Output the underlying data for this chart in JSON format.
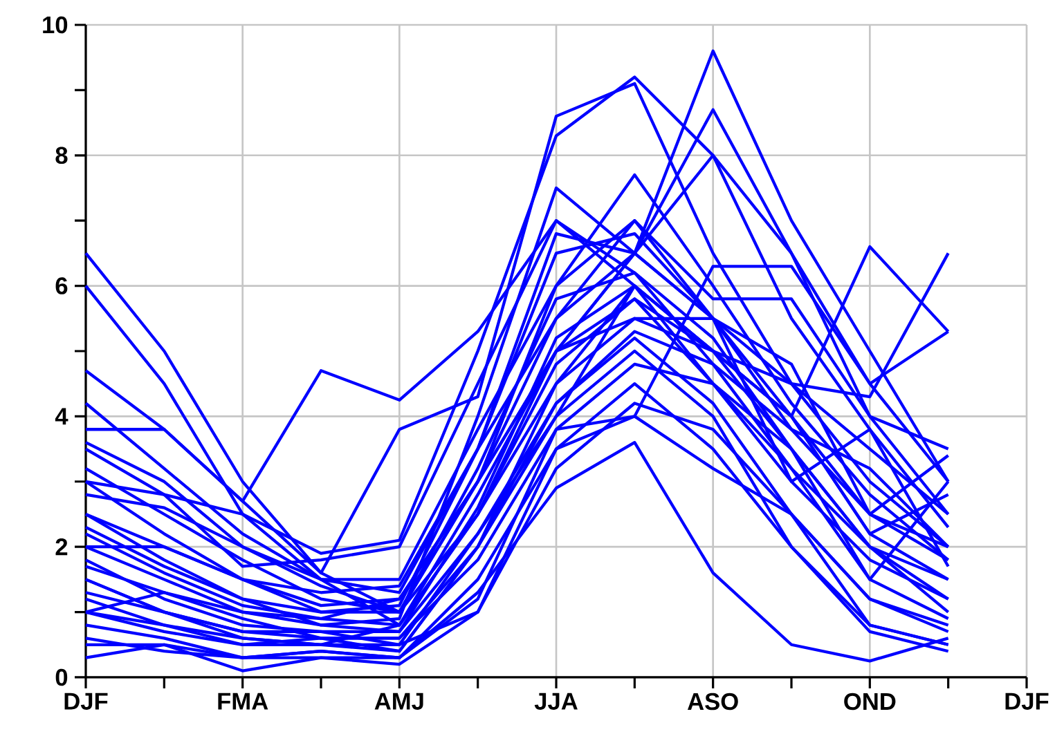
{
  "chart_data": {
    "type": "line",
    "color": "#0000ff",
    "grid": true,
    "categories": [
      "DJF",
      null,
      "FMA",
      null,
      "AMJ",
      null,
      "JJA",
      null,
      "ASO",
      null,
      "OND",
      null,
      "DJF"
    ],
    "ylim": [
      0,
      10
    ],
    "yticks": [
      0,
      {
        "value": 1,
        "label": null
      },
      2,
      {
        "value": 3,
        "label": null
      },
      4,
      {
        "value": 5,
        "label": null
      },
      6,
      {
        "value": 7,
        "label": null
      },
      8,
      {
        "value": 9,
        "label": null
      },
      10
    ],
    "series": [
      {
        "values": [
          6.5,
          5.0,
          3.0,
          1.6,
          1.0,
          3.0,
          6.0,
          7.0,
          5.5,
          4.0,
          2.5,
          1.8,
          null
        ]
      },
      {
        "values": [
          6.0,
          4.5,
          2.5,
          1.5,
          0.8,
          2.5,
          5.0,
          6.5,
          9.6,
          7.0,
          5.0,
          3.0,
          null
        ]
      },
      {
        "values": [
          4.7,
          3.8,
          2.7,
          4.7,
          4.25,
          5.3,
          7.0,
          6.0,
          5.0,
          4.5,
          3.5,
          2.5,
          null
        ]
      },
      {
        "values": [
          3.8,
          3.8,
          2.7,
          1.6,
          3.8,
          4.3,
          8.6,
          9.1,
          6.5,
          4.5,
          3.0,
          2.0,
          null
        ]
      },
      {
        "values": [
          3.5,
          2.8,
          2.5,
          1.9,
          2.1,
          5.0,
          8.3,
          9.2,
          8.0,
          5.5,
          3.8,
          2.3,
          null
        ]
      },
      {
        "values": [
          0.3,
          0.5,
          0.1,
          0.3,
          0.3,
          1.3,
          2.9,
          3.6,
          1.6,
          0.5,
          0.25,
          0.6,
          null
        ]
      },
      {
        "values": [
          1.0,
          1.3,
          1.0,
          0.9,
          1.2,
          3.0,
          5.5,
          6.5,
          8.7,
          6.5,
          4.5,
          3.0,
          null
        ]
      },
      {
        "values": [
          2.0,
          1.5,
          1.0,
          0.8,
          0.9,
          4.0,
          7.5,
          6.5,
          8.0,
          6.5,
          4.0,
          2.5,
          null
        ]
      },
      {
        "values": [
          1.5,
          1.0,
          0.6,
          0.5,
          0.5,
          1.0,
          3.5,
          4.0,
          6.3,
          6.3,
          4.5,
          5.3,
          null
        ]
      },
      {
        "values": [
          2.5,
          1.8,
          1.2,
          1.0,
          1.0,
          2.5,
          4.5,
          6.0,
          5.0,
          4.0,
          6.6,
          5.3,
          null
        ]
      },
      {
        "values": [
          3.0,
          2.2,
          1.5,
          1.1,
          1.2,
          3.0,
          5.0,
          5.5,
          5.5,
          4.5,
          4.3,
          6.5,
          null
        ]
      },
      {
        "values": [
          1.2,
          0.8,
          0.5,
          0.6,
          0.4,
          2.0,
          4.0,
          5.0,
          4.0,
          2.0,
          0.8,
          0.5,
          null
        ]
      },
      {
        "values": [
          0.8,
          0.6,
          0.3,
          0.4,
          0.3,
          1.5,
          3.5,
          4.5,
          3.5,
          2.0,
          0.7,
          0.4,
          null
        ]
      },
      {
        "values": [
          2.2,
          1.6,
          1.1,
          0.9,
          0.8,
          2.8,
          5.0,
          5.8,
          4.5,
          3.0,
          1.8,
          1.2,
          null
        ]
      },
      {
        "values": [
          1.8,
          1.2,
          0.8,
          0.7,
          0.7,
          2.2,
          4.2,
          5.2,
          4.2,
          2.5,
          1.2,
          0.8,
          null
        ]
      },
      {
        "values": [
          3.2,
          2.5,
          1.8,
          1.2,
          1.0,
          3.2,
          5.8,
          6.2,
          5.2,
          3.5,
          2.0,
          1.5,
          null
        ]
      },
      {
        "values": [
          4.2,
          3.2,
          2.2,
          1.5,
          1.3,
          3.5,
          6.5,
          6.8,
          5.5,
          3.8,
          3.2,
          2.0,
          null
        ]
      },
      {
        "values": [
          1.5,
          1.0,
          0.7,
          0.6,
          0.6,
          1.8,
          3.8,
          4.8,
          4.5,
          3.2,
          2.0,
          1.0,
          null
        ]
      },
      {
        "values": [
          0.5,
          0.5,
          0.3,
          0.3,
          0.2,
          1.0,
          3.2,
          4.2,
          3.8,
          2.5,
          1.2,
          0.7,
          null
        ]
      },
      {
        "values": [
          2.8,
          2.6,
          2.0,
          1.5,
          1.5,
          3.8,
          6.0,
          7.7,
          6.0,
          4.2,
          2.8,
          1.8,
          null
        ]
      },
      {
        "values": [
          1.0,
          0.7,
          0.5,
          0.5,
          0.4,
          2.0,
          4.5,
          5.5,
          5.0,
          4.0,
          2.2,
          1.5,
          null
        ]
      },
      {
        "values": [
          2.0,
          2.0,
          1.5,
          1.3,
          1.4,
          3.5,
          5.5,
          7.0,
          5.8,
          5.8,
          4.0,
          3.5,
          null
        ]
      },
      {
        "values": [
          1.3,
          1.0,
          0.7,
          0.7,
          0.5,
          2.2,
          4.0,
          6.0,
          4.5,
          3.5,
          1.5,
          0.9,
          null
        ]
      },
      {
        "values": [
          3.6,
          3.0,
          2.0,
          1.4,
          1.0,
          3.0,
          5.0,
          6.5,
          5.5,
          3.0,
          3.8,
          1.7,
          null
        ]
      },
      {
        "values": [
          1.7,
          1.3,
          0.9,
          0.6,
          0.6,
          2.0,
          4.2,
          5.3,
          4.8,
          3.2,
          1.5,
          3.0,
          null
        ]
      },
      {
        "values": [
          0.6,
          0.4,
          0.3,
          0.4,
          0.3,
          1.2,
          3.8,
          4.0,
          3.2,
          2.5,
          0.8,
          0.5,
          null
        ]
      },
      {
        "values": [
          2.5,
          2.0,
          1.5,
          1.0,
          1.1,
          3.5,
          6.8,
          6.5,
          5.5,
          4.8,
          2.5,
          2.0,
          null
        ]
      },
      {
        "values": [
          3.0,
          2.8,
          1.7,
          1.8,
          2.0,
          4.5,
          7.0,
          6.2,
          4.8,
          3.8,
          2.5,
          3.4,
          null
        ]
      },
      {
        "values": [
          1.0,
          0.8,
          0.6,
          0.5,
          0.8,
          2.5,
          4.8,
          5.8,
          5.0,
          3.5,
          2.0,
          1.2,
          null
        ]
      },
      {
        "values": [
          2.3,
          1.7,
          1.2,
          0.8,
          0.7,
          2.6,
          5.2,
          6.0,
          5.0,
          4.0,
          2.2,
          2.8,
          null
        ]
      }
    ]
  }
}
